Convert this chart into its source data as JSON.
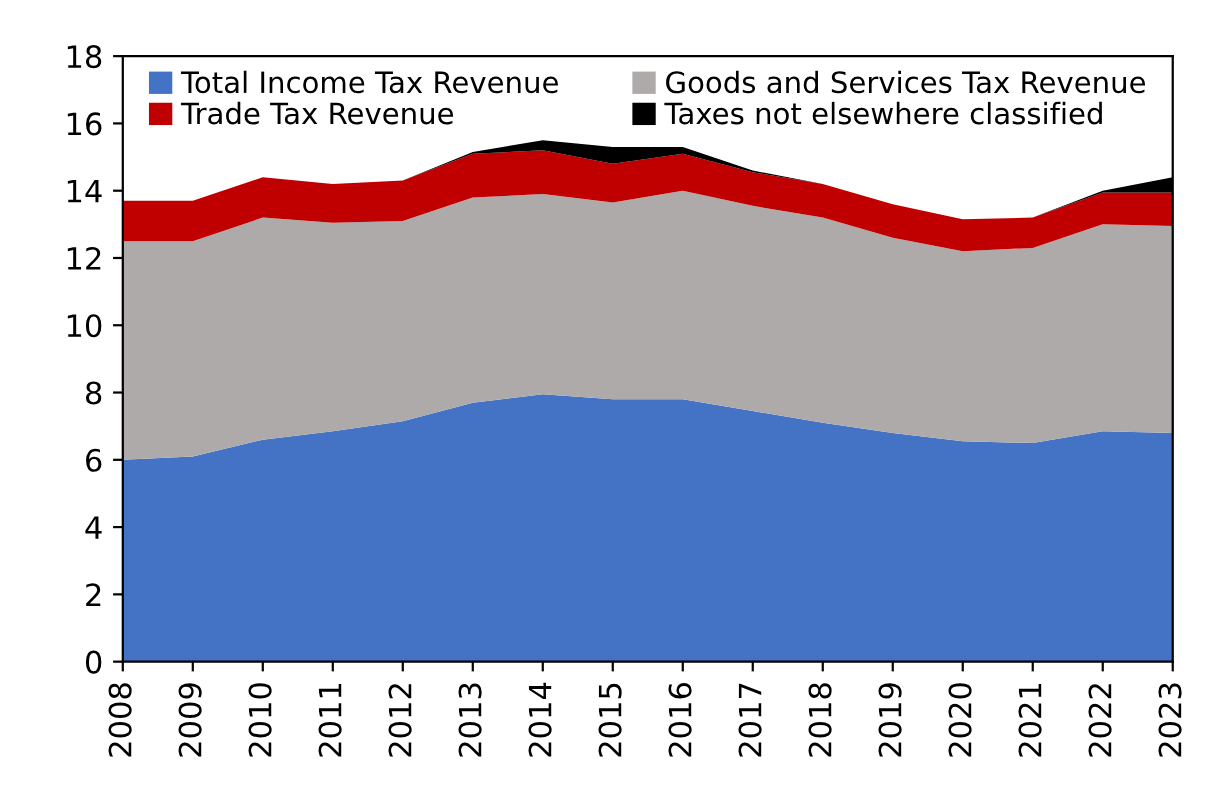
{
  "chart_data": {
    "type": "area",
    "stacked": true,
    "categories": [
      "2008",
      "2009",
      "2010",
      "2011",
      "2012",
      "2013",
      "2014",
      "2015",
      "2016",
      "2017",
      "2018",
      "2019",
      "2020",
      "2021",
      "2022",
      "2023"
    ],
    "series": [
      {
        "name": "Total Income Tax Revenue",
        "color": "#4472c4",
        "values": [
          6.0,
          6.1,
          6.6,
          6.85,
          7.15,
          7.7,
          7.95,
          7.8,
          7.8,
          7.45,
          7.1,
          6.8,
          6.55,
          6.5,
          6.85,
          6.8
        ]
      },
      {
        "name": "Goods and Services Tax Revenue",
        "color": "#aeaaaa",
        "values": [
          6.5,
          6.4,
          6.6,
          6.2,
          5.95,
          6.1,
          5.95,
          5.85,
          6.2,
          6.1,
          6.1,
          5.8,
          5.65,
          5.8,
          6.15,
          6.15
        ]
      },
      {
        "name": "Trade Tax Revenue",
        "color": "#c00000",
        "values": [
          1.2,
          1.2,
          1.2,
          1.15,
          1.2,
          1.3,
          1.3,
          1.15,
          1.1,
          1.0,
          1.0,
          1.0,
          0.95,
          0.9,
          0.95,
          1.0
        ]
      },
      {
        "name": "Taxes not elsewhere classified",
        "color": "#000000",
        "values": [
          0,
          0,
          0,
          0,
          0,
          0.05,
          0.3,
          0.5,
          0.2,
          0.05,
          0,
          0,
          0,
          0,
          0.05,
          0.45
        ]
      }
    ],
    "ylim": [
      0,
      18
    ],
    "yticks": [
      0,
      2,
      4,
      6,
      8,
      10,
      12,
      14,
      16,
      18
    ],
    "grid": false,
    "legend": "top"
  }
}
